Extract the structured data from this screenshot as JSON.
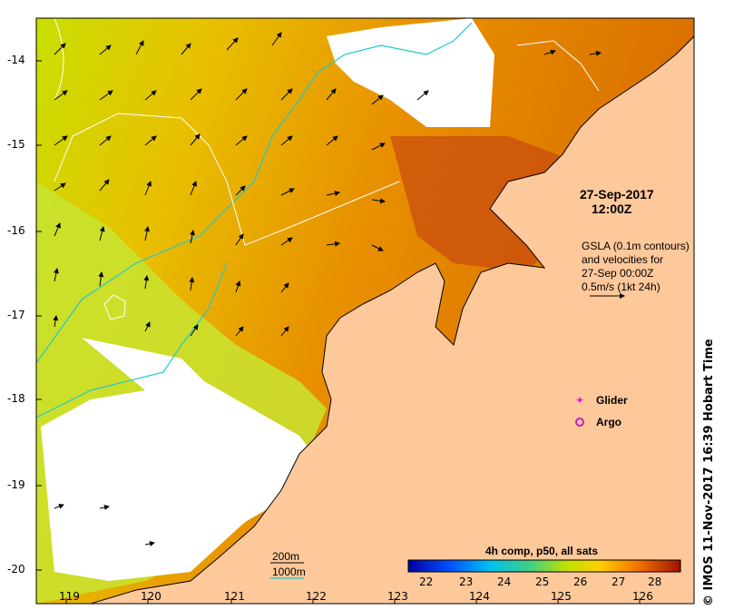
{
  "map": {
    "x_ticks": [
      "119",
      "120",
      "121",
      "122",
      "123",
      "124",
      "125",
      "126"
    ],
    "y_ticks": [
      "-14",
      "-15",
      "-16",
      "-17",
      "-18",
      "-19",
      "-20"
    ]
  },
  "annotations": {
    "date": "27-Sep-2017",
    "time": "12:00Z",
    "gsla_lines": [
      "GSLA (0.1m contours)",
      "and velocities for",
      "27-Sep 00:00Z",
      "0.5m/s (1kt 24h)"
    ]
  },
  "legend": {
    "glider": "Glider",
    "argo": "Argo",
    "depth_200": "200m",
    "depth_1000": "1000m"
  },
  "colorbar": {
    "title": "4h comp, p50, all sats",
    "ticks": [
      "22",
      "23",
      "24",
      "25",
      "26",
      "27",
      "28"
    ]
  },
  "stamp": "© IMOS 11-Nov-2017 16:39 Hobart Time",
  "colors": {
    "land": "#fdc89a",
    "glider": "#e020e0",
    "argo": "#c020c0",
    "isobath_1000": "#20c8d0",
    "gsla_contour": "#ffffff"
  }
}
